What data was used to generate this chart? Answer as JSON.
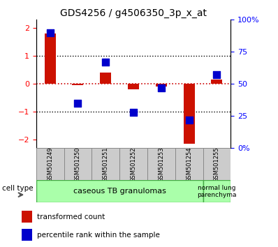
{
  "title": "GDS4256 / g4506350_3p_x_at",
  "samples": [
    "GSM501249",
    "GSM501250",
    "GSM501251",
    "GSM501252",
    "GSM501253",
    "GSM501254",
    "GSM501255"
  ],
  "red_values": [
    1.82,
    -0.05,
    0.42,
    -0.18,
    -0.08,
    -2.15,
    0.15
  ],
  "blue_values_pct": [
    90,
    35,
    67,
    28,
    47,
    22,
    57
  ],
  "ylim_left": [
    -2.3,
    2.3
  ],
  "ylim_right": [
    -2.3,
    2.3
  ],
  "left_yticks": [
    -2,
    -1,
    0,
    1,
    2
  ],
  "right_yticks_val": [
    -2.3,
    -1.15,
    0.0,
    1.15,
    2.3
  ],
  "right_ytick_labels": [
    "0%",
    "25",
    "50",
    "75",
    "100%"
  ],
  "hline_y0_color": "#cc0000",
  "hline_y1_color": "black",
  "bar_color_red": "#cc1100",
  "bar_color_blue": "#0000cc",
  "group1_label": "caseous TB granulomas",
  "group2_label": "normal lung\nparenchyma",
  "group1_count": 6,
  "group2_count": 1,
  "group_color": "#aaffaa",
  "group_edge_color": "#44aa44",
  "cell_type_label": "cell type",
  "legend_red_label": "transformed count",
  "legend_blue_label": "percentile rank within the sample",
  "bar_width": 0.4,
  "blue_marker_size": 55,
  "title_fontsize": 10,
  "tick_fontsize": 8,
  "label_fontsize": 8,
  "sample_label_fontsize": 6
}
